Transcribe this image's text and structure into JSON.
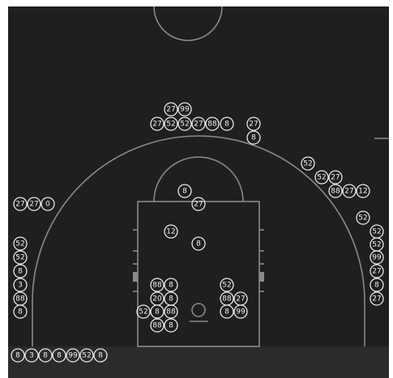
{
  "shots": [
    "27",
    "99",
    "27",
    "52",
    "52",
    "27",
    "88",
    "8",
    "27",
    "8",
    "52",
    "52",
    "27",
    "88",
    "27",
    "12",
    "8",
    "27",
    "27",
    "27",
    "0",
    "52",
    "12",
    "52",
    "8",
    "52",
    "52",
    "99",
    "52",
    "27",
    "8",
    "3",
    "88",
    "8",
    "52",
    "8",
    "88",
    "20",
    "8",
    "88",
    "27",
    "27",
    "8",
    "52",
    "8",
    "88",
    "8",
    "99",
    "88",
    "8"
  ],
  "bench": [
    "8",
    "3",
    "8",
    "8",
    "99",
    "52",
    "8"
  ]
}
